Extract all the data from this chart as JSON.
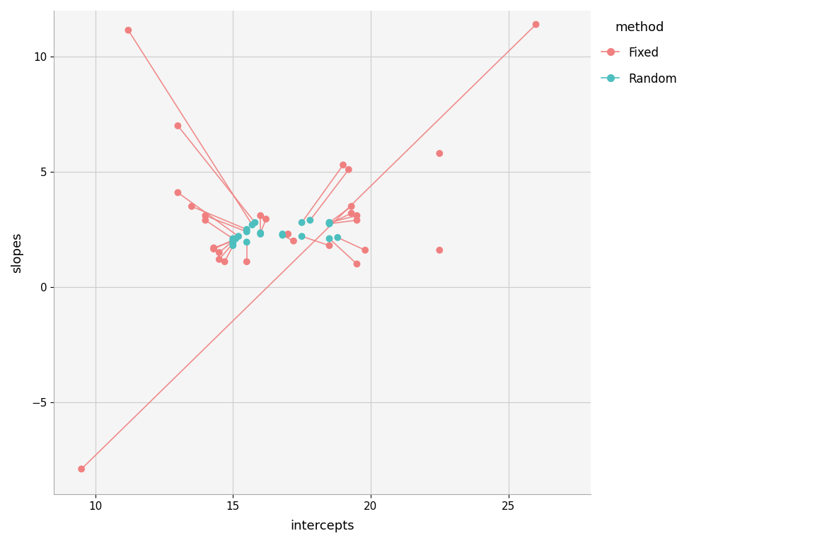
{
  "title": "",
  "xlabel": "intercepts",
  "ylabel": "slopes",
  "xlim": [
    8.5,
    28
  ],
  "ylim": [
    -9,
    12
  ],
  "xticks": [
    10,
    15,
    20,
    25
  ],
  "yticks": [
    -5,
    0,
    5,
    10
  ],
  "fixed_color": "#F08080",
  "random_color": "#4DBFBF",
  "bg_color": "#FFFFFF",
  "plot_bg_color": "#F5F5F5",
  "grid_color": "#CCCCCC",
  "pairs": [
    {
      "fixed": [
        9.5,
        -7.9
      ],
      "random": null
    },
    {
      "fixed": [
        11.2,
        11.15
      ],
      "random": [
        15.7,
        2.7
      ]
    },
    {
      "fixed": [
        13.0,
        7.0
      ],
      "random": [
        15.8,
        2.8
      ]
    },
    {
      "fixed": [
        13.0,
        4.1
      ],
      "random": [
        15.2,
        2.2
      ]
    },
    {
      "fixed": [
        13.5,
        3.5
      ],
      "random": [
        15.5,
        2.5
      ]
    },
    {
      "fixed": [
        14.0,
        3.1
      ],
      "random": [
        15.5,
        2.4
      ]
    },
    {
      "fixed": [
        14.0,
        2.9
      ],
      "random": [
        15.0,
        2.1
      ]
    },
    {
      "fixed": [
        14.3,
        1.7
      ],
      "random": [
        15.0,
        2.0
      ]
    },
    {
      "fixed": [
        14.3,
        1.65
      ],
      "random": [
        15.1,
        2.1
      ]
    },
    {
      "fixed": [
        14.5,
        1.5
      ],
      "random": [
        15.0,
        2.0
      ]
    },
    {
      "fixed": [
        14.5,
        1.2
      ],
      "random": [
        15.0,
        1.9
      ]
    },
    {
      "fixed": [
        14.7,
        1.1
      ],
      "random": [
        15.0,
        1.8
      ]
    },
    {
      "fixed": [
        15.5,
        1.1
      ],
      "random": [
        15.5,
        1.95
      ]
    },
    {
      "fixed": [
        16.0,
        3.1
      ],
      "random": [
        16.0,
        2.3
      ]
    },
    {
      "fixed": [
        16.2,
        2.95
      ],
      "random": [
        16.0,
        2.35
      ]
    },
    {
      "fixed": [
        17.0,
        2.3
      ],
      "random": [
        16.8,
        2.3
      ]
    },
    {
      "fixed": [
        17.2,
        2.0
      ],
      "random": [
        16.8,
        2.25
      ]
    },
    {
      "fixed": [
        18.5,
        1.8
      ],
      "random": [
        17.5,
        2.2
      ]
    },
    {
      "fixed": [
        19.0,
        5.3
      ],
      "random": [
        17.5,
        2.8
      ]
    },
    {
      "fixed": [
        19.2,
        5.1
      ],
      "random": [
        17.8,
        2.9
      ]
    },
    {
      "fixed": [
        19.3,
        3.5
      ],
      "random": [
        18.5,
        2.8
      ]
    },
    {
      "fixed": [
        19.3,
        3.2
      ],
      "random": [
        18.5,
        2.75
      ]
    },
    {
      "fixed": [
        19.5,
        3.1
      ],
      "random": [
        18.5,
        2.8
      ]
    },
    {
      "fixed": [
        19.5,
        2.9
      ],
      "random": [
        18.5,
        2.75
      ]
    },
    {
      "fixed": [
        19.5,
        1.0
      ],
      "random": [
        18.5,
        2.1
      ]
    },
    {
      "fixed": [
        19.8,
        1.6
      ],
      "random": [
        18.8,
        2.15
      ]
    },
    {
      "fixed": [
        22.5,
        1.6
      ],
      "random": null
    },
    {
      "fixed": [
        22.5,
        5.8
      ],
      "random": null
    },
    {
      "fixed": [
        26.0,
        11.4
      ],
      "random": null
    }
  ],
  "mean_line": {
    "x1": 9.5,
    "y1": -7.9,
    "x2": 26.0,
    "y2": 11.4
  },
  "legend_title": "method",
  "legend_fixed_label": "Fixed",
  "legend_random_label": "Random"
}
